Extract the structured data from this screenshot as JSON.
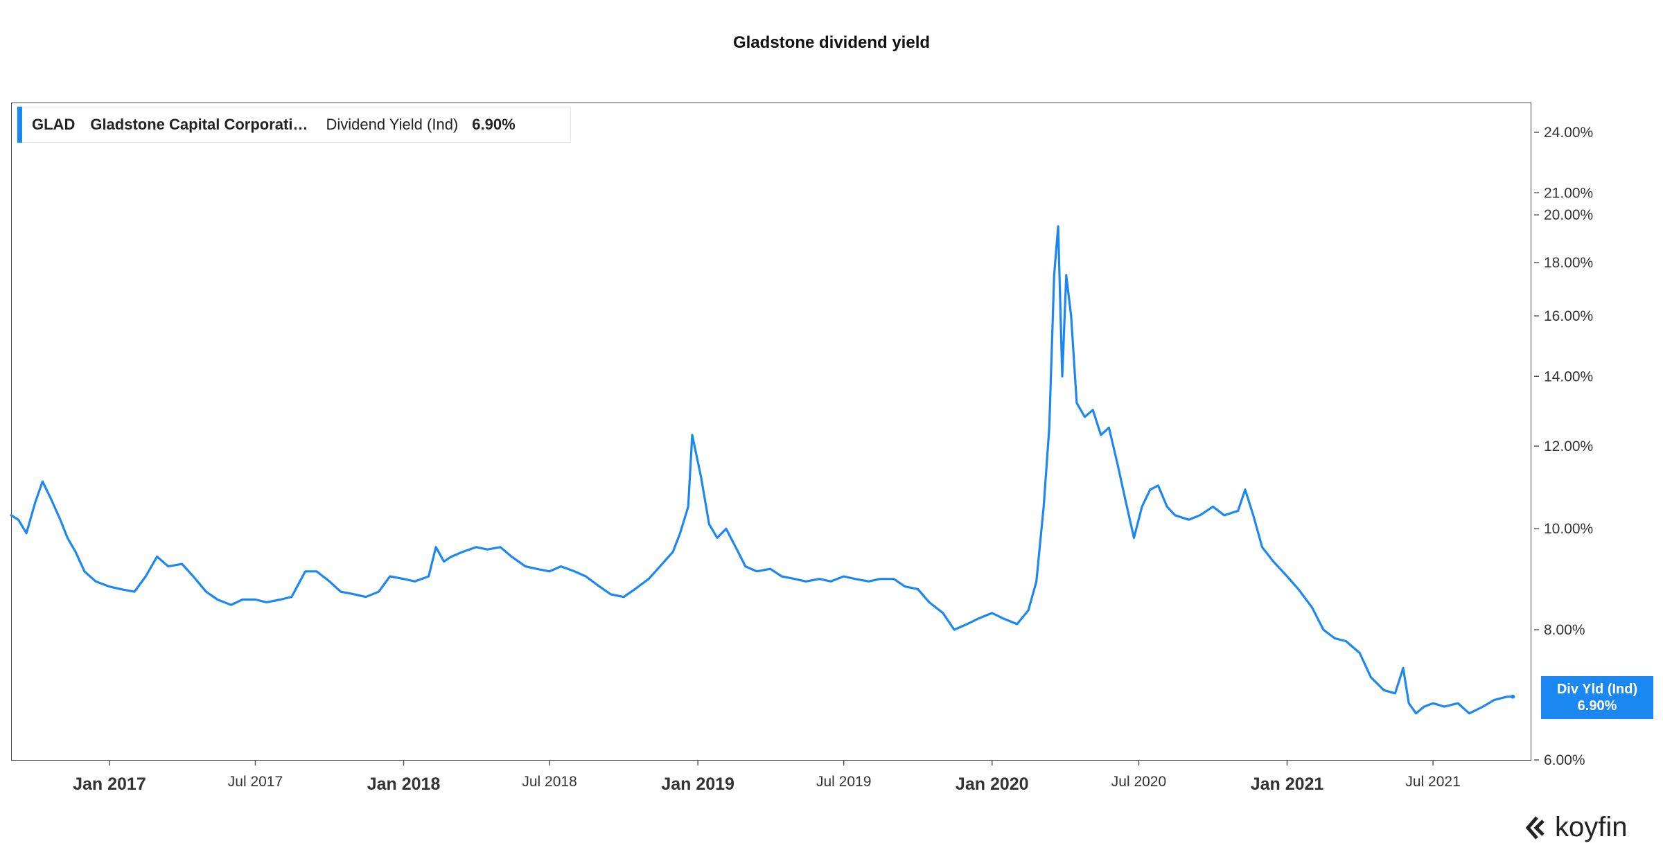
{
  "chart_data": {
    "type": "line",
    "title": "Gladstone dividend yield",
    "y_scale": "log",
    "ylim": [
      6.0,
      25.0
    ],
    "y_ticks": [
      "24.00%",
      "21.00%",
      "20.00%",
      "18.00%",
      "16.00%",
      "14.00%",
      "12.00%",
      "10.00%",
      "8.00%",
      "6.00%"
    ],
    "y_tick_values": [
      24,
      21,
      20,
      18,
      16,
      14,
      12,
      10,
      8,
      6
    ],
    "x_range": [
      "2016-09-01",
      "2021-10-31"
    ],
    "x_ticks": [
      {
        "label": "Jan 2017",
        "date": "2017-01-01",
        "major": true
      },
      {
        "label": "Jul 2017",
        "date": "2017-07-01",
        "major": false
      },
      {
        "label": "Jan 2018",
        "date": "2018-01-01",
        "major": true
      },
      {
        "label": "Jul 2018",
        "date": "2018-07-01",
        "major": false
      },
      {
        "label": "Jan 2019",
        "date": "2019-01-01",
        "major": true
      },
      {
        "label": "Jul 2019",
        "date": "2019-07-01",
        "major": false
      },
      {
        "label": "Jan 2020",
        "date": "2020-01-01",
        "major": true
      },
      {
        "label": "Jul 2020",
        "date": "2020-07-01",
        "major": false
      },
      {
        "label": "Jan 2021",
        "date": "2021-01-01",
        "major": true
      },
      {
        "label": "Jul 2021",
        "date": "2021-07-01",
        "major": false
      }
    ],
    "grid": false,
    "legend": "top-left",
    "series": [
      {
        "name": "Dividend Yield (Ind)",
        "color": "#1a87f2",
        "points": [
          [
            "2016-09-01",
            10.3
          ],
          [
            "2016-09-10",
            10.2
          ],
          [
            "2016-09-20",
            9.9
          ],
          [
            "2016-10-01",
            10.6
          ],
          [
            "2016-10-10",
            11.1
          ],
          [
            "2016-10-20",
            10.7
          ],
          [
            "2016-11-01",
            10.2
          ],
          [
            "2016-11-10",
            9.8
          ],
          [
            "2016-11-20",
            9.5
          ],
          [
            "2016-12-01",
            9.1
          ],
          [
            "2016-12-15",
            8.9
          ],
          [
            "2017-01-01",
            8.8
          ],
          [
            "2017-01-15",
            8.75
          ],
          [
            "2017-02-01",
            8.7
          ],
          [
            "2017-02-15",
            9.0
          ],
          [
            "2017-03-01",
            9.4
          ],
          [
            "2017-03-15",
            9.2
          ],
          [
            "2017-04-01",
            9.25
          ],
          [
            "2017-04-15",
            9.0
          ],
          [
            "2017-05-01",
            8.7
          ],
          [
            "2017-05-15",
            8.55
          ],
          [
            "2017-06-01",
            8.45
          ],
          [
            "2017-06-15",
            8.55
          ],
          [
            "2017-07-01",
            8.55
          ],
          [
            "2017-07-15",
            8.5
          ],
          [
            "2017-08-01",
            8.55
          ],
          [
            "2017-08-15",
            8.6
          ],
          [
            "2017-09-01",
            9.1
          ],
          [
            "2017-09-15",
            9.1
          ],
          [
            "2017-10-01",
            8.9
          ],
          [
            "2017-10-15",
            8.7
          ],
          [
            "2017-11-01",
            8.65
          ],
          [
            "2017-11-15",
            8.6
          ],
          [
            "2017-12-01",
            8.7
          ],
          [
            "2017-12-15",
            9.0
          ],
          [
            "2018-01-01",
            8.95
          ],
          [
            "2018-01-15",
            8.9
          ],
          [
            "2018-02-01",
            9.0
          ],
          [
            "2018-02-10",
            9.6
          ],
          [
            "2018-02-20",
            9.3
          ],
          [
            "2018-03-01",
            9.4
          ],
          [
            "2018-03-15",
            9.5
          ],
          [
            "2018-04-01",
            9.6
          ],
          [
            "2018-04-15",
            9.55
          ],
          [
            "2018-05-01",
            9.6
          ],
          [
            "2018-05-15",
            9.4
          ],
          [
            "2018-06-01",
            9.2
          ],
          [
            "2018-06-15",
            9.15
          ],
          [
            "2018-07-01",
            9.1
          ],
          [
            "2018-07-15",
            9.2
          ],
          [
            "2018-08-01",
            9.1
          ],
          [
            "2018-08-15",
            9.0
          ],
          [
            "2018-09-01",
            8.8
          ],
          [
            "2018-09-15",
            8.65
          ],
          [
            "2018-10-01",
            8.6
          ],
          [
            "2018-10-15",
            8.75
          ],
          [
            "2018-11-01",
            8.95
          ],
          [
            "2018-11-15",
            9.2
          ],
          [
            "2018-12-01",
            9.5
          ],
          [
            "2018-12-10",
            9.9
          ],
          [
            "2018-12-20",
            10.5
          ],
          [
            "2018-12-25",
            12.3
          ],
          [
            "2019-01-05",
            11.2
          ],
          [
            "2019-01-15",
            10.1
          ],
          [
            "2019-01-25",
            9.8
          ],
          [
            "2019-02-05",
            10.0
          ],
          [
            "2019-02-20",
            9.5
          ],
          [
            "2019-03-01",
            9.2
          ],
          [
            "2019-03-15",
            9.1
          ],
          [
            "2019-04-01",
            9.15
          ],
          [
            "2019-04-15",
            9.0
          ],
          [
            "2019-05-01",
            8.95
          ],
          [
            "2019-05-15",
            8.9
          ],
          [
            "2019-06-01",
            8.95
          ],
          [
            "2019-06-15",
            8.9
          ],
          [
            "2019-07-01",
            9.0
          ],
          [
            "2019-07-15",
            8.95
          ],
          [
            "2019-08-01",
            8.9
          ],
          [
            "2019-08-15",
            8.95
          ],
          [
            "2019-09-01",
            8.95
          ],
          [
            "2019-09-15",
            8.8
          ],
          [
            "2019-10-01",
            8.75
          ],
          [
            "2019-10-15",
            8.5
          ],
          [
            "2019-11-01",
            8.3
          ],
          [
            "2019-11-15",
            8.0
          ],
          [
            "2019-12-01",
            8.1
          ],
          [
            "2019-12-15",
            8.2
          ],
          [
            "2020-01-01",
            8.3
          ],
          [
            "2020-01-15",
            8.2
          ],
          [
            "2020-02-01",
            8.1
          ],
          [
            "2020-02-15",
            8.35
          ],
          [
            "2020-02-25",
            8.9
          ],
          [
            "2020-03-05",
            10.5
          ],
          [
            "2020-03-12",
            12.5
          ],
          [
            "2020-03-18",
            17.5
          ],
          [
            "2020-03-23",
            19.5
          ],
          [
            "2020-03-28",
            14.0
          ],
          [
            "2020-04-02",
            17.5
          ],
          [
            "2020-04-08",
            16.0
          ],
          [
            "2020-04-15",
            13.2
          ],
          [
            "2020-04-25",
            12.8
          ],
          [
            "2020-05-05",
            13.0
          ],
          [
            "2020-05-15",
            12.3
          ],
          [
            "2020-05-25",
            12.5
          ],
          [
            "2020-06-05",
            11.5
          ],
          [
            "2020-06-15",
            10.6
          ],
          [
            "2020-06-25",
            9.8
          ],
          [
            "2020-07-05",
            10.5
          ],
          [
            "2020-07-15",
            10.9
          ],
          [
            "2020-07-25",
            11.0
          ],
          [
            "2020-08-05",
            10.5
          ],
          [
            "2020-08-15",
            10.3
          ],
          [
            "2020-09-01",
            10.2
          ],
          [
            "2020-09-15",
            10.3
          ],
          [
            "2020-10-01",
            10.5
          ],
          [
            "2020-10-15",
            10.3
          ],
          [
            "2020-11-01",
            10.4
          ],
          [
            "2020-11-10",
            10.9
          ],
          [
            "2020-11-20",
            10.3
          ],
          [
            "2020-12-01",
            9.6
          ],
          [
            "2020-12-15",
            9.3
          ],
          [
            "2021-01-01",
            9.0
          ],
          [
            "2021-01-15",
            8.75
          ],
          [
            "2021-02-01",
            8.4
          ],
          [
            "2021-02-15",
            8.0
          ],
          [
            "2021-03-01",
            7.85
          ],
          [
            "2021-03-15",
            7.8
          ],
          [
            "2021-04-01",
            7.6
          ],
          [
            "2021-04-15",
            7.2
          ],
          [
            "2021-05-01",
            7.0
          ],
          [
            "2021-05-15",
            6.95
          ],
          [
            "2021-05-25",
            7.35
          ],
          [
            "2021-06-01",
            6.8
          ],
          [
            "2021-06-10",
            6.65
          ],
          [
            "2021-06-20",
            6.75
          ],
          [
            "2021-07-01",
            6.8
          ],
          [
            "2021-07-15",
            6.75
          ],
          [
            "2021-08-01",
            6.8
          ],
          [
            "2021-08-15",
            6.65
          ],
          [
            "2021-09-01",
            6.75
          ],
          [
            "2021-09-15",
            6.85
          ],
          [
            "2021-10-01",
            6.9
          ],
          [
            "2021-10-08",
            6.9
          ]
        ]
      }
    ],
    "last_value_label": {
      "line1": "Div Yld (Ind)",
      "line2": "6.90%"
    }
  },
  "title": "Gladstone dividend yield",
  "legend": {
    "ticker": "GLAD",
    "name": "Gladstone Capital Corporati…",
    "metric": "Dividend Yield (Ind)",
    "value": "6.90%"
  },
  "brand": {
    "name": "koyfin"
  },
  "colors": {
    "series": "#1a87f2",
    "frame": "#444444"
  }
}
